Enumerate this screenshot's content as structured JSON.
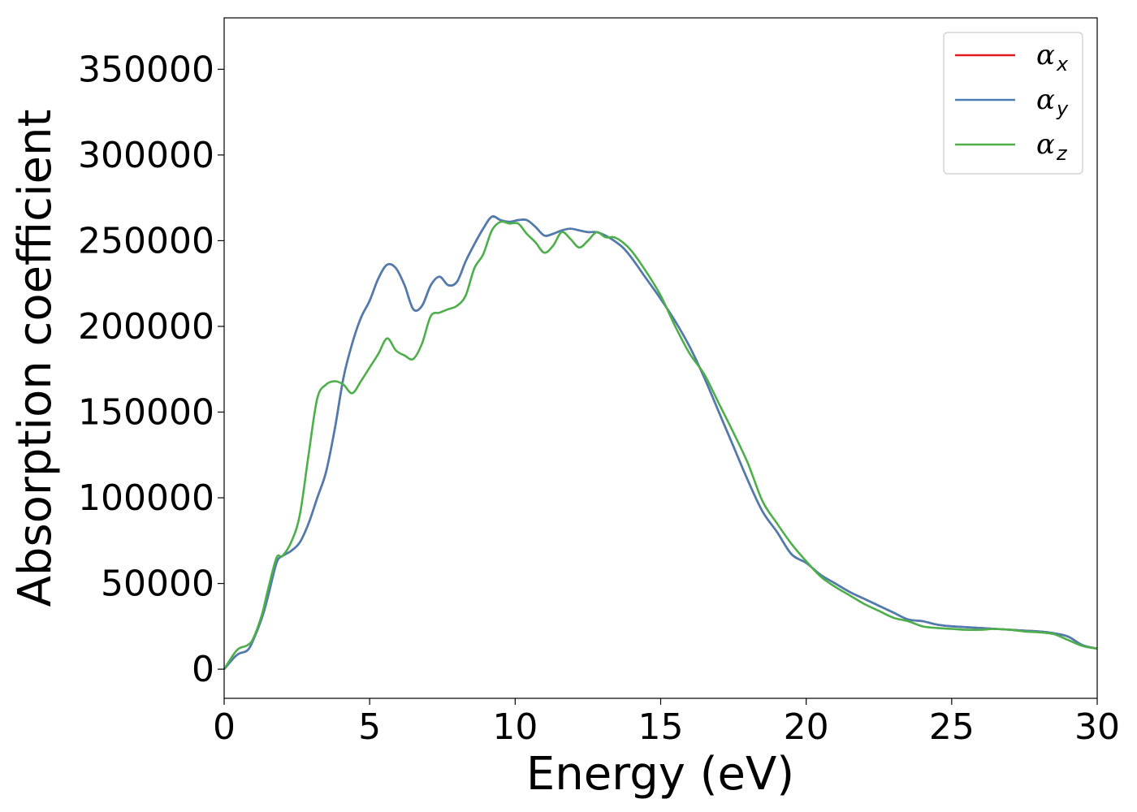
{
  "chart_data": {
    "type": "line",
    "xlabel": "Energy (eV)",
    "ylabel": "Absorption coefficient",
    "xlim": [
      0,
      30
    ],
    "ylim": [
      -17000,
      380000
    ],
    "xticks": [
      0,
      5,
      10,
      15,
      20,
      25,
      30
    ],
    "xtick_labels": [
      "0",
      "5",
      "10",
      "15",
      "20",
      "25",
      "30"
    ],
    "yticks": [
      0,
      50000,
      100000,
      150000,
      200000,
      250000,
      300000,
      350000
    ],
    "ytick_labels": [
      "0",
      "50000",
      "100000",
      "150000",
      "200000",
      "250000",
      "300000",
      "350000"
    ],
    "grid": false,
    "legend_position": "top-right",
    "series": [
      {
        "name": "α_x",
        "label_main": "α",
        "label_sub": "x",
        "color": "#e41a1c",
        "x": [
          0,
          0.3,
          0.5,
          0.8,
          1.0,
          1.3,
          1.5,
          1.8,
          2.0,
          2.3,
          2.6,
          2.9,
          3.2,
          3.5,
          3.8,
          4.1,
          4.4,
          4.7,
          5.0,
          5.3,
          5.6,
          5.9,
          6.2,
          6.5,
          6.8,
          7.1,
          7.4,
          7.7,
          8.0,
          8.3,
          8.6,
          8.9,
          9.2,
          9.5,
          9.8,
          10.1,
          10.4,
          10.7,
          11.0,
          11.3,
          11.6,
          11.9,
          12.2,
          12.5,
          12.8,
          13.1,
          13.4,
          13.7,
          14.0,
          14.5,
          15.0,
          15.5,
          16.0,
          16.5,
          17.0,
          17.5,
          18.0,
          18.5,
          19.0,
          19.5,
          20.0,
          20.5,
          21.0,
          21.5,
          22.0,
          22.5,
          23.0,
          23.5,
          24.0,
          24.5,
          25.0,
          25.5,
          26.0,
          26.5,
          27.0,
          27.5,
          28.0,
          28.5,
          29.0,
          29.5,
          30.0
        ],
        "y": [
          0,
          6000,
          9000,
          11000,
          17000,
          30000,
          42000,
          62000,
          66000,
          69000,
          74000,
          85000,
          100000,
          115000,
          140000,
          170000,
          190000,
          205000,
          215000,
          228000,
          236000,
          234000,
          224000,
          210000,
          212000,
          224000,
          229000,
          224000,
          226000,
          238000,
          248000,
          257000,
          264000,
          262000,
          261000,
          262000,
          262000,
          258000,
          253000,
          254000,
          256000,
          257000,
          256000,
          255000,
          255000,
          253000,
          250000,
          246000,
          240000,
          228000,
          216000,
          203000,
          188000,
          170000,
          150000,
          130000,
          110000,
          92000,
          80000,
          67000,
          62000,
          55000,
          50000,
          45000,
          41000,
          37000,
          33000,
          29000,
          28000,
          26000,
          25000,
          24500,
          24000,
          23500,
          23000,
          22500,
          22000,
          21000,
          19000,
          14000,
          12000
        ]
      },
      {
        "name": "α_y",
        "label_main": "α",
        "label_sub": "y",
        "color": "#4a7eb2",
        "x": [
          0,
          0.3,
          0.5,
          0.8,
          1.0,
          1.3,
          1.5,
          1.8,
          2.0,
          2.3,
          2.6,
          2.9,
          3.2,
          3.5,
          3.8,
          4.1,
          4.4,
          4.7,
          5.0,
          5.3,
          5.6,
          5.9,
          6.2,
          6.5,
          6.8,
          7.1,
          7.4,
          7.7,
          8.0,
          8.3,
          8.6,
          8.9,
          9.2,
          9.5,
          9.8,
          10.1,
          10.4,
          10.7,
          11.0,
          11.3,
          11.6,
          11.9,
          12.2,
          12.5,
          12.8,
          13.1,
          13.4,
          13.7,
          14.0,
          14.5,
          15.0,
          15.5,
          16.0,
          16.5,
          17.0,
          17.5,
          18.0,
          18.5,
          19.0,
          19.5,
          20.0,
          20.5,
          21.0,
          21.5,
          22.0,
          22.5,
          23.0,
          23.5,
          24.0,
          24.5,
          25.0,
          25.5,
          26.0,
          26.5,
          27.0,
          27.5,
          28.0,
          28.5,
          29.0,
          29.5,
          30.0
        ],
        "y": [
          0,
          6000,
          9000,
          11000,
          17000,
          30000,
          42000,
          62000,
          66000,
          69000,
          74000,
          85000,
          100000,
          115000,
          140000,
          170000,
          190000,
          205000,
          215000,
          228000,
          236000,
          234000,
          224000,
          210000,
          212000,
          224000,
          229000,
          224000,
          226000,
          238000,
          248000,
          257000,
          264000,
          262000,
          261000,
          262000,
          262000,
          258000,
          253000,
          254000,
          256000,
          257000,
          256000,
          255000,
          255000,
          253000,
          250000,
          246000,
          240000,
          228000,
          216000,
          203000,
          188000,
          170000,
          150000,
          130000,
          110000,
          92000,
          80000,
          67000,
          62000,
          55000,
          50000,
          45000,
          41000,
          37000,
          33000,
          29000,
          28000,
          26000,
          25000,
          24500,
          24000,
          23500,
          23000,
          22500,
          22000,
          21000,
          19000,
          14000,
          12000
        ]
      },
      {
        "name": "α_z",
        "label_main": "α",
        "label_sub": "z",
        "color": "#4daf4a",
        "x": [
          0,
          0.3,
          0.5,
          0.8,
          1.0,
          1.3,
          1.5,
          1.8,
          2.0,
          2.3,
          2.6,
          2.9,
          3.2,
          3.5,
          3.8,
          4.1,
          4.4,
          4.7,
          5.0,
          5.3,
          5.6,
          5.9,
          6.2,
          6.5,
          6.8,
          7.1,
          7.4,
          7.7,
          8.0,
          8.3,
          8.6,
          8.9,
          9.2,
          9.5,
          9.8,
          10.1,
          10.4,
          10.7,
          11.0,
          11.3,
          11.6,
          11.9,
          12.2,
          12.5,
          12.8,
          13.1,
          13.4,
          13.7,
          14.0,
          14.5,
          15.0,
          15.5,
          16.0,
          16.5,
          17.0,
          17.5,
          18.0,
          18.5,
          19.0,
          19.5,
          20.0,
          20.5,
          21.0,
          21.5,
          22.0,
          22.5,
          23.0,
          23.5,
          24.0,
          24.5,
          25.0,
          25.5,
          26.0,
          26.5,
          27.0,
          27.5,
          28.0,
          28.5,
          29.0,
          29.5,
          30.0
        ],
        "y": [
          0,
          8000,
          12000,
          14000,
          18000,
          32000,
          46000,
          65000,
          66000,
          74000,
          90000,
          125000,
          158000,
          166000,
          168000,
          166000,
          161000,
          168000,
          176000,
          184000,
          193000,
          186000,
          183000,
          181000,
          190000,
          206000,
          208000,
          210000,
          212000,
          218000,
          234000,
          242000,
          256000,
          261000,
          260000,
          260000,
          254000,
          249000,
          243000,
          247000,
          255000,
          251000,
          246000,
          250000,
          255000,
          252000,
          252000,
          249000,
          244000,
          232000,
          218000,
          200000,
          184000,
          172000,
          155000,
          138000,
          120000,
          98000,
          85000,
          73000,
          63000,
          54000,
          48000,
          43000,
          38000,
          34000,
          30000,
          28000,
          25000,
          24000,
          23500,
          23000,
          23000,
          23500,
          23000,
          22000,
          21500,
          20500,
          17000,
          13500,
          12000
        ]
      }
    ]
  }
}
